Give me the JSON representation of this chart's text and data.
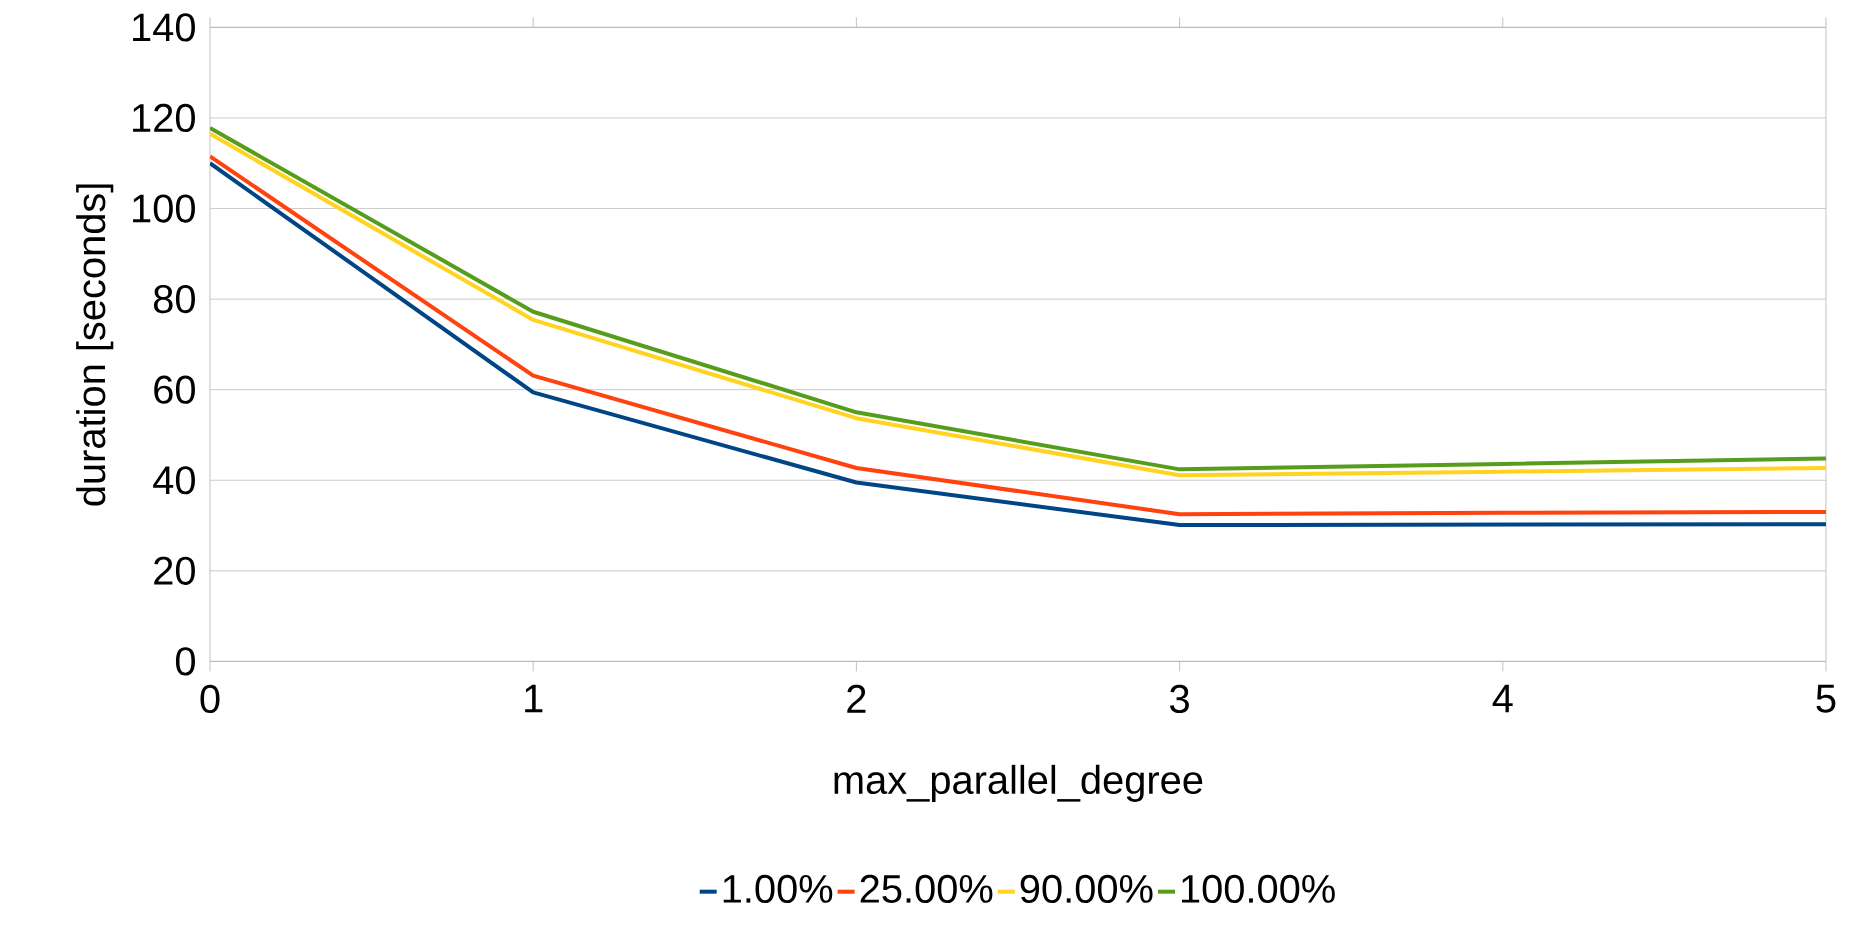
{
  "chart_data": {
    "type": "line",
    "xlabel": "max_parallel_degree",
    "ylabel": "duration [seconds]",
    "x": [
      0,
      1,
      2,
      3,
      4,
      5
    ],
    "series": [
      {
        "name": "1.00%",
        "color": "#004586",
        "values": [
          110,
          59.4,
          39.5,
          30.1,
          30.2,
          30.3
        ]
      },
      {
        "name": "25.00%",
        "color": "#ff420e",
        "values": [
          111.5,
          63.1,
          42.7,
          32.5,
          32.8,
          33
        ]
      },
      {
        "name": "90.00%",
        "color": "#ffd320",
        "values": [
          116.5,
          75.4,
          53.7,
          41.1,
          41.9,
          42.7
        ]
      },
      {
        "name": "100.00%",
        "color": "#579d1c",
        "values": [
          117.8,
          77.2,
          55,
          42.4,
          43.6,
          44.8
        ]
      }
    ],
    "xlim": [
      0,
      5
    ],
    "ylim": [
      0,
      140
    ],
    "xticks": [
      0,
      1,
      2,
      3,
      4,
      5
    ],
    "yticks": [
      0,
      20,
      40,
      60,
      80,
      100,
      120,
      140
    ],
    "grid": "y",
    "legend": "bottom"
  }
}
